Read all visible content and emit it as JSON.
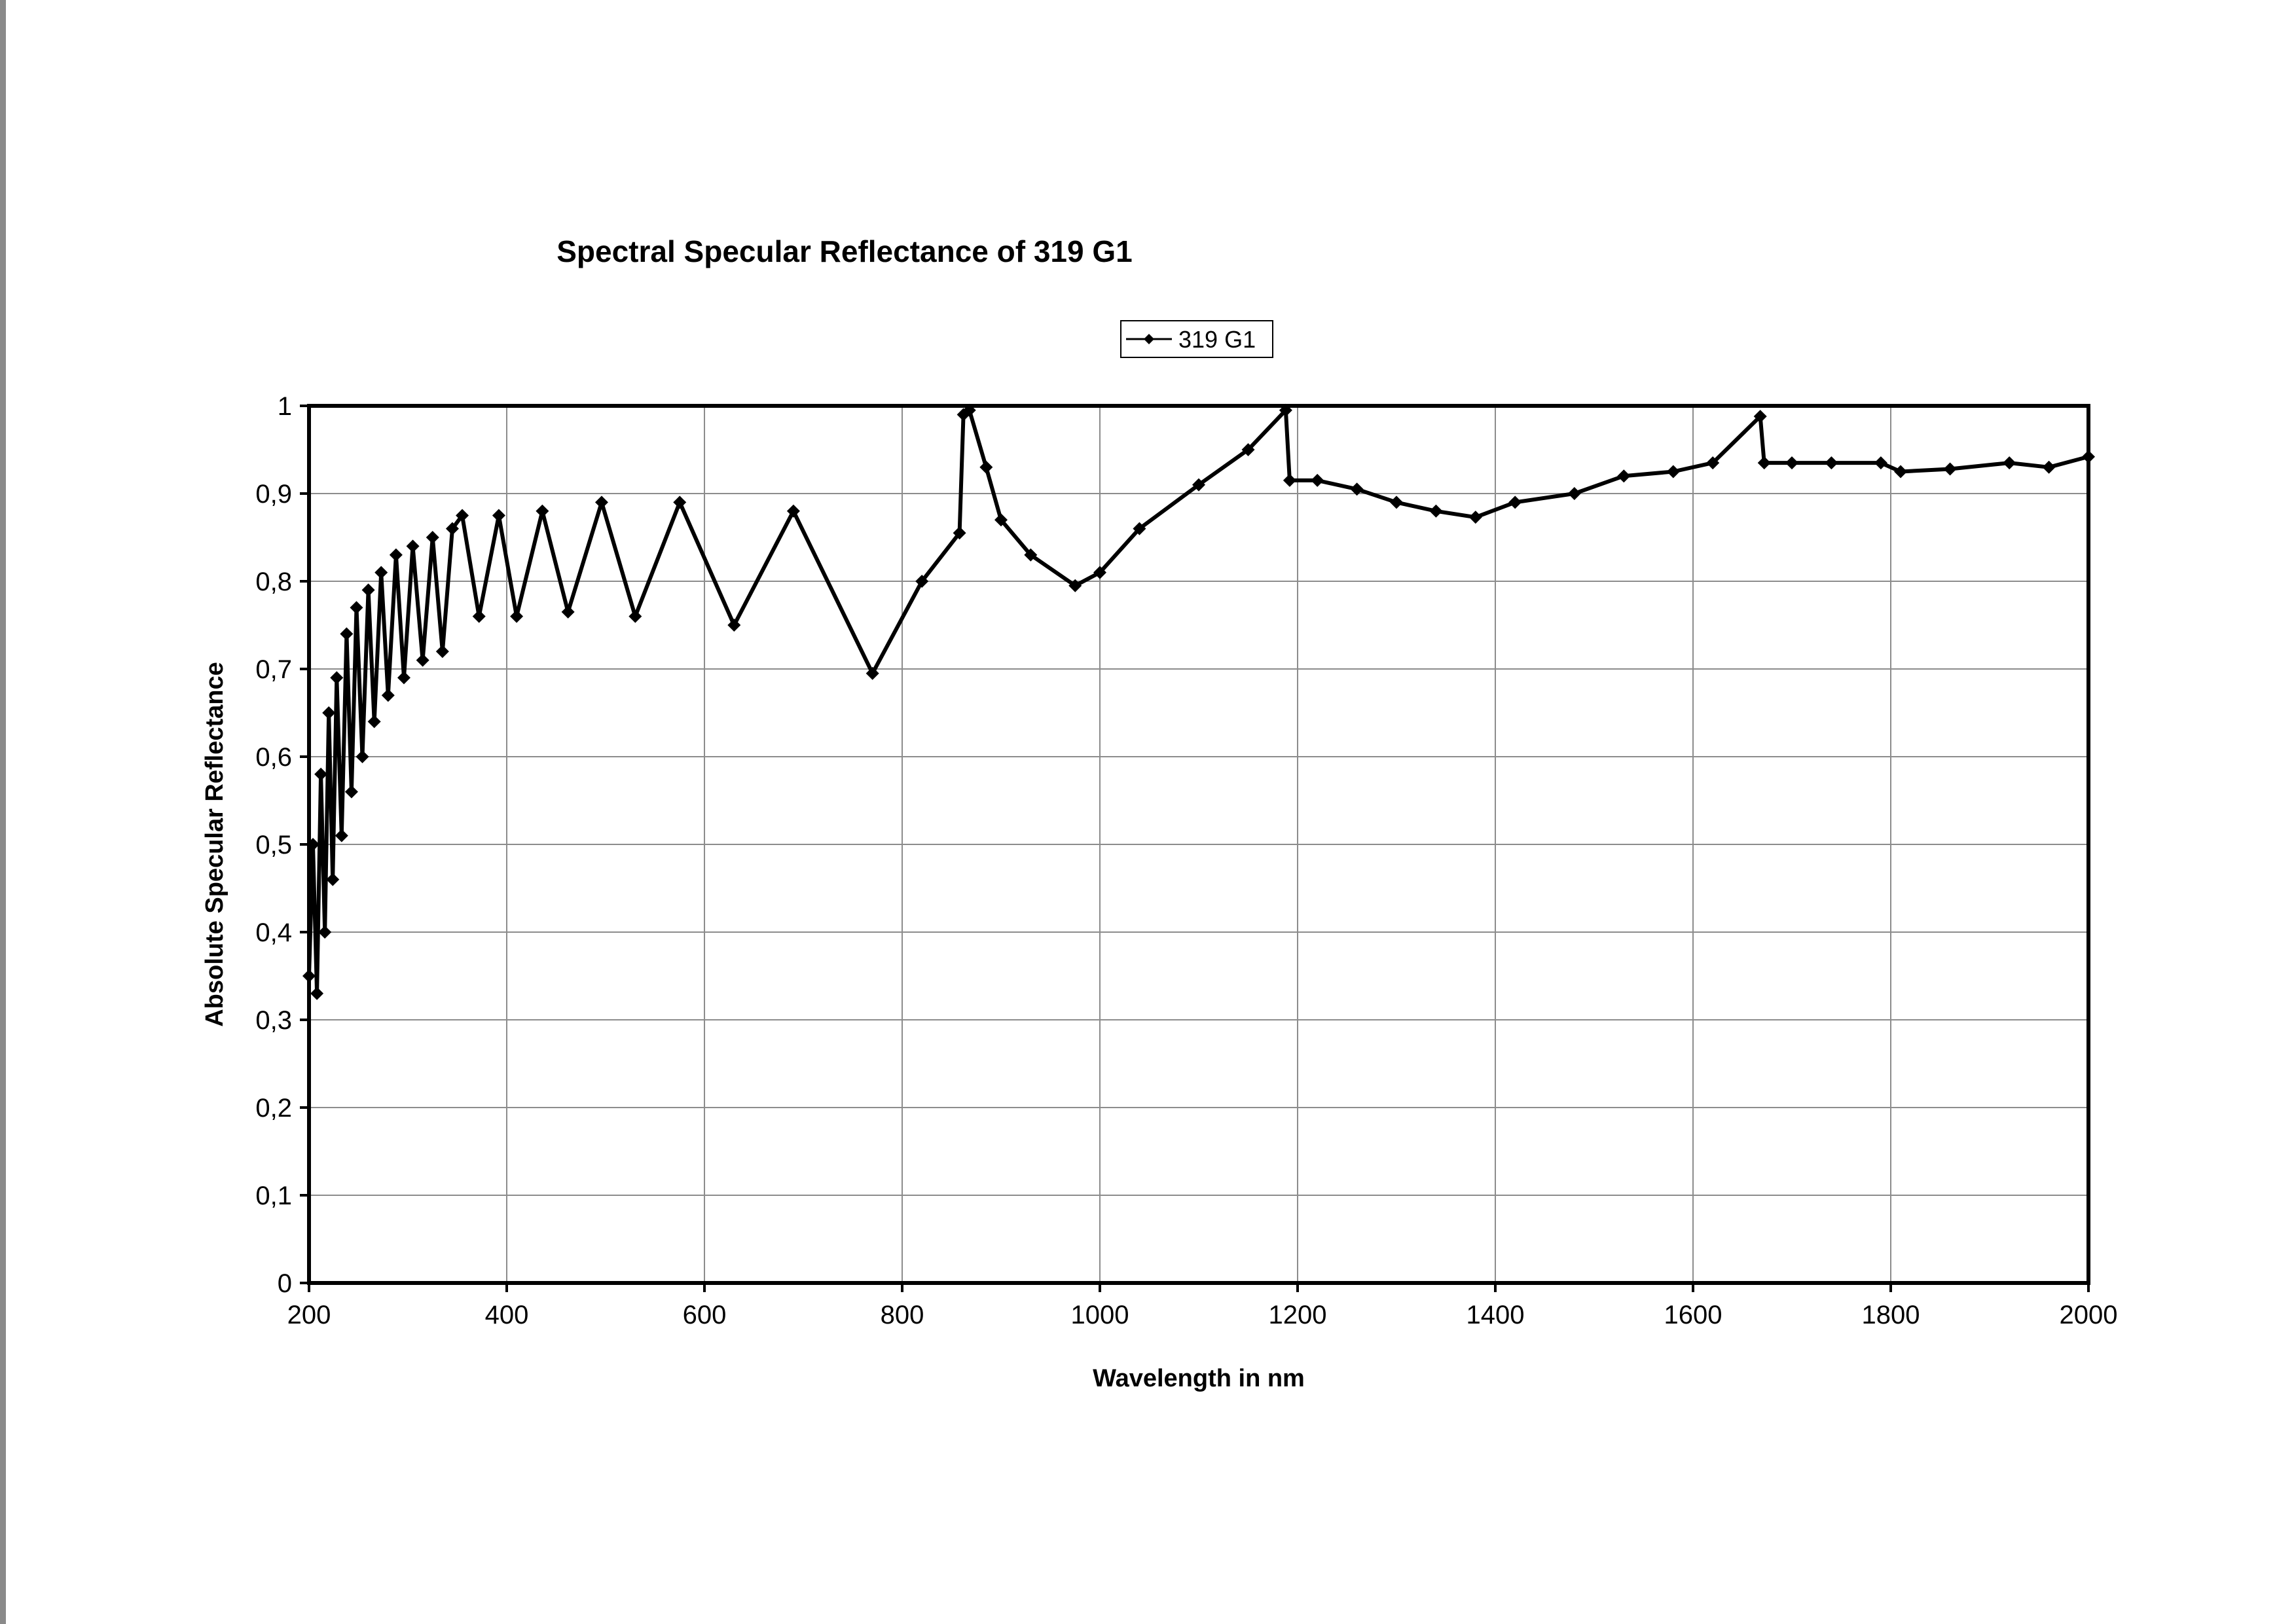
{
  "chart_data": {
    "type": "line",
    "title": "Spectral Specular Reflectance of 319 G1",
    "xlabel": "Wavelength in nm",
    "ylabel": "Absolute Specular Reflectance",
    "xlim": [
      200,
      2000
    ],
    "ylim": [
      0,
      1
    ],
    "x_ticks": [
      "200",
      "400",
      "600",
      "800",
      "1000",
      "1200",
      "1400",
      "1600",
      "1800",
      "2000"
    ],
    "y_ticks": [
      "0",
      "0,1",
      "0,2",
      "0,3",
      "0,4",
      "0,5",
      "0,6",
      "0,7",
      "0,8",
      "0,9",
      "1"
    ],
    "grid": true,
    "legend_position": "top-center",
    "marker": "diamond",
    "line_color": "#000000",
    "series": [
      {
        "name": "319 G1",
        "points": [
          [
            200,
            0.35
          ],
          [
            204,
            0.5
          ],
          [
            208,
            0.33
          ],
          [
            212,
            0.58
          ],
          [
            216,
            0.4
          ],
          [
            220,
            0.65
          ],
          [
            224,
            0.46
          ],
          [
            228,
            0.69
          ],
          [
            233,
            0.51
          ],
          [
            238,
            0.74
          ],
          [
            243,
            0.56
          ],
          [
            248,
            0.77
          ],
          [
            254,
            0.6
          ],
          [
            260,
            0.79
          ],
          [
            266,
            0.64
          ],
          [
            273,
            0.81
          ],
          [
            280,
            0.67
          ],
          [
            288,
            0.83
          ],
          [
            296,
            0.69
          ],
          [
            305,
            0.84
          ],
          [
            315,
            0.71
          ],
          [
            325,
            0.85
          ],
          [
            335,
            0.72
          ],
          [
            345,
            0.86
          ],
          [
            355,
            0.875
          ],
          [
            372,
            0.76
          ],
          [
            392,
            0.875
          ],
          [
            410,
            0.76
          ],
          [
            436,
            0.88
          ],
          [
            462,
            0.765
          ],
          [
            496,
            0.89
          ],
          [
            530,
            0.76
          ],
          [
            575,
            0.89
          ],
          [
            630,
            0.75
          ],
          [
            690,
            0.88
          ],
          [
            770,
            0.695
          ],
          [
            820,
            0.8
          ],
          [
            858,
            0.855
          ],
          [
            862,
            0.99
          ],
          [
            868,
            0.995
          ],
          [
            885,
            0.93
          ],
          [
            900,
            0.87
          ],
          [
            930,
            0.83
          ],
          [
            975,
            0.795
          ],
          [
            1000,
            0.81
          ],
          [
            1040,
            0.86
          ],
          [
            1100,
            0.91
          ],
          [
            1150,
            0.95
          ],
          [
            1188,
            0.995
          ],
          [
            1192,
            0.915
          ],
          [
            1220,
            0.915
          ],
          [
            1260,
            0.905
          ],
          [
            1300,
            0.89
          ],
          [
            1340,
            0.88
          ],
          [
            1380,
            0.873
          ],
          [
            1420,
            0.89
          ],
          [
            1480,
            0.9
          ],
          [
            1530,
            0.92
          ],
          [
            1580,
            0.925
          ],
          [
            1620,
            0.935
          ],
          [
            1668,
            0.988
          ],
          [
            1672,
            0.935
          ],
          [
            1700,
            0.935
          ],
          [
            1740,
            0.935
          ],
          [
            1790,
            0.935
          ],
          [
            1810,
            0.925
          ],
          [
            1860,
            0.928
          ],
          [
            1920,
            0.935
          ],
          [
            1960,
            0.93
          ],
          [
            2000,
            0.942
          ]
        ]
      }
    ]
  }
}
